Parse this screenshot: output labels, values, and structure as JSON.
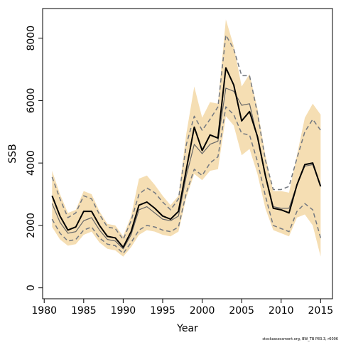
{
  "chart_data": {
    "type": "line",
    "title": "",
    "xlabel": "Year",
    "ylabel": "SSB",
    "xlim": [
      1979.8,
      2016.5
    ],
    "ylim": [
      -350,
      8950
    ],
    "x_ticks": [
      1980,
      1985,
      1990,
      1995,
      2000,
      2005,
      2010,
      2015
    ],
    "y_ticks": [
      0,
      2000,
      4000,
      6000,
      8000
    ],
    "grid": false,
    "legend": "none",
    "footnote": "stockassessment.org, BW_TB P83.3, r6006",
    "x": [
      1981,
      1982,
      1983,
      1984,
      1985,
      1986,
      1987,
      1988,
      1989,
      1990,
      1991,
      1992,
      1993,
      1994,
      1995,
      1996,
      1997,
      1998,
      1999,
      2000,
      2001,
      2002,
      2003,
      2004,
      2005,
      2006,
      2007,
      2008,
      2009,
      2010,
      2011,
      2012,
      2013,
      2014,
      2015
    ],
    "series": [
      {
        "values": [
          2950,
          2300,
          1850,
          1950,
          2450,
          2450,
          2000,
          1650,
          1600,
          1300,
          1800,
          2650,
          2750,
          2550,
          2300,
          2200,
          2450,
          3800,
          5150,
          4400,
          4900,
          4800,
          7050,
          6500,
          5350,
          5650,
          4850,
          3600,
          2550,
          2500,
          2400,
          3300,
          3950,
          4000,
          3250
        ]
      },
      {
        "values": [
          2700,
          2100,
          1750,
          1800,
          2150,
          2250,
          1850,
          1550,
          1500,
          1250,
          1700,
          2500,
          2600,
          2400,
          2200,
          2150,
          2300,
          3600,
          4600,
          4300,
          4600,
          4700,
          6400,
          6300,
          5850,
          5900,
          4800,
          3600,
          2600,
          2550,
          2550,
          3300,
          3900,
          3950,
          3250
        ]
      },
      {
        "values": [
          3550,
          2850,
          2250,
          2400,
          2950,
          2850,
          2350,
          1950,
          1900,
          1550,
          2150,
          3000,
          3200,
          3050,
          2750,
          2500,
          2850,
          4600,
          5500,
          5050,
          5400,
          5800,
          8100,
          7650,
          6800,
          6800,
          5600,
          4100,
          3150,
          3150,
          3250,
          4150,
          5000,
          5400,
          5050
        ]
      },
      {
        "values": [
          2200,
          1750,
          1500,
          1550,
          1850,
          1950,
          1600,
          1400,
          1350,
          1100,
          1450,
          1850,
          2000,
          1950,
          1850,
          1800,
          1950,
          3050,
          3800,
          3600,
          4000,
          4200,
          5800,
          5550,
          4950,
          4900,
          4050,
          2950,
          2000,
          1900,
          1800,
          2450,
          2700,
          2500,
          1600
        ]
      }
    ],
    "band": {
      "upper": [
        3750,
        3000,
        2400,
        2500,
        3100,
        3000,
        2450,
        2050,
        2000,
        1650,
        2300,
        3500,
        3600,
        3300,
        2950,
        2650,
        2950,
        4950,
        6450,
        5450,
        5950,
        5900,
        8600,
        7750,
        6450,
        6850,
        5750,
        4250,
        3100,
        3100,
        3050,
        4250,
        5450,
        5900,
        5550
      ],
      "lower": [
        1950,
        1550,
        1350,
        1400,
        1700,
        1800,
        1450,
        1250,
        1200,
        1000,
        1300,
        1700,
        1850,
        1800,
        1700,
        1650,
        1800,
        2900,
        3650,
        3450,
        3750,
        3800,
        5500,
        5200,
        4250,
        4450,
        3650,
        2550,
        1850,
        1750,
        1650,
        2250,
        2350,
        2000,
        1000
      ]
    },
    "colors": {
      "band": "#f5deb3",
      "main_line": "#000000",
      "secondary_line": "#666666",
      "dashed_line": "#737880",
      "axis": "#000000"
    }
  }
}
